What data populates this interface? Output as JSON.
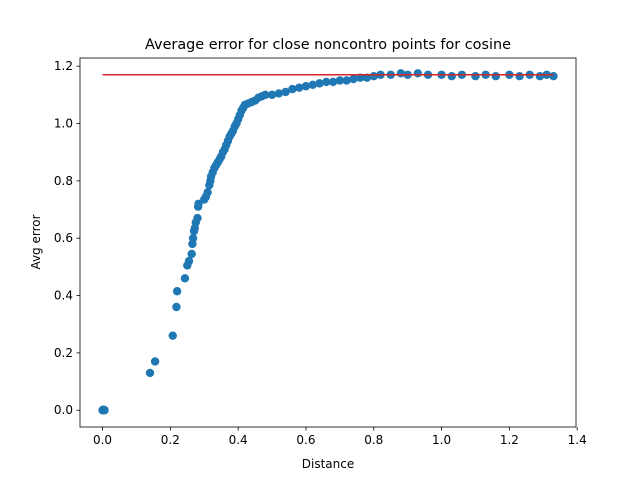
{
  "chart_data": {
    "type": "scatter",
    "title": "Average error for close noncontro points for cosine",
    "xlabel": "Distance",
    "ylabel": "Avg error",
    "xlim": [
      -0.0665,
      1.3965
    ],
    "ylim": [
      -0.0585,
      1.2285
    ],
    "xticks": [
      0.0,
      0.2,
      0.4,
      0.6,
      0.8,
      1.0,
      1.2,
      1.4
    ],
    "xtick_labels": [
      "0.0",
      "0.2",
      "0.4",
      "0.6",
      "0.8",
      "1.0",
      "1.2",
      "1.4"
    ],
    "yticks": [
      0.0,
      0.2,
      0.4,
      0.6,
      0.8,
      1.0,
      1.2
    ],
    "ytick_labels": [
      "0.0",
      "0.2",
      "0.4",
      "0.6",
      "0.8",
      "1.0",
      "1.2"
    ],
    "grid": false,
    "point_color": "#1f77b4",
    "line_color": "#d62728",
    "reference_line": {
      "y": 1.17,
      "x_start": 0.0,
      "x_end": 1.33
    },
    "series": [
      {
        "points": [
          [
            0.0,
            0.0
          ],
          [
            0.003,
            0.0
          ],
          [
            0.006,
            0.0
          ],
          [
            0.002,
            0.002
          ],
          [
            0.005,
            0.001
          ],
          [
            0.14,
            0.13
          ],
          [
            0.155,
            0.17
          ],
          [
            0.207,
            0.26
          ],
          [
            0.218,
            0.36
          ],
          [
            0.22,
            0.415
          ],
          [
            0.243,
            0.46
          ],
          [
            0.25,
            0.505
          ],
          [
            0.255,
            0.52
          ],
          [
            0.263,
            0.545
          ],
          [
            0.265,
            0.58
          ],
          [
            0.267,
            0.6
          ],
          [
            0.27,
            0.625
          ],
          [
            0.272,
            0.635
          ],
          [
            0.275,
            0.655
          ],
          [
            0.28,
            0.67
          ],
          [
            0.282,
            0.71
          ],
          [
            0.283,
            0.72
          ],
          [
            0.3,
            0.735
          ],
          [
            0.305,
            0.745
          ],
          [
            0.31,
            0.76
          ],
          [
            0.315,
            0.785
          ],
          [
            0.318,
            0.8
          ],
          [
            0.32,
            0.815
          ],
          [
            0.325,
            0.83
          ],
          [
            0.33,
            0.845
          ],
          [
            0.335,
            0.855
          ],
          [
            0.34,
            0.865
          ],
          [
            0.345,
            0.875
          ],
          [
            0.35,
            0.885
          ],
          [
            0.355,
            0.9
          ],
          [
            0.36,
            0.91
          ],
          [
            0.365,
            0.925
          ],
          [
            0.37,
            0.94
          ],
          [
            0.375,
            0.955
          ],
          [
            0.38,
            0.965
          ],
          [
            0.385,
            0.975
          ],
          [
            0.39,
            0.99
          ],
          [
            0.395,
            1.0
          ],
          [
            0.4,
            1.015
          ],
          [
            0.405,
            1.03
          ],
          [
            0.41,
            1.045
          ],
          [
            0.415,
            1.055
          ],
          [
            0.42,
            1.065
          ],
          [
            0.43,
            1.07
          ],
          [
            0.44,
            1.075
          ],
          [
            0.45,
            1.08
          ],
          [
            0.46,
            1.09
          ],
          [
            0.47,
            1.095
          ],
          [
            0.48,
            1.1
          ],
          [
            0.5,
            1.1
          ],
          [
            0.52,
            1.105
          ],
          [
            0.54,
            1.11
          ],
          [
            0.56,
            1.12
          ],
          [
            0.58,
            1.125
          ],
          [
            0.6,
            1.13
          ],
          [
            0.62,
            1.135
          ],
          [
            0.64,
            1.14
          ],
          [
            0.66,
            1.145
          ],
          [
            0.68,
            1.145
          ],
          [
            0.7,
            1.15
          ],
          [
            0.72,
            1.15
          ],
          [
            0.74,
            1.155
          ],
          [
            0.76,
            1.16
          ],
          [
            0.78,
            1.16
          ],
          [
            0.8,
            1.165
          ],
          [
            0.82,
            1.17
          ],
          [
            0.85,
            1.17
          ],
          [
            0.88,
            1.175
          ],
          [
            0.9,
            1.17
          ],
          [
            0.93,
            1.175
          ],
          [
            0.96,
            1.17
          ],
          [
            1.0,
            1.17
          ],
          [
            1.03,
            1.165
          ],
          [
            1.06,
            1.17
          ],
          [
            1.1,
            1.165
          ],
          [
            1.13,
            1.17
          ],
          [
            1.16,
            1.165
          ],
          [
            1.2,
            1.17
          ],
          [
            1.23,
            1.165
          ],
          [
            1.26,
            1.17
          ],
          [
            1.29,
            1.165
          ],
          [
            1.31,
            1.17
          ],
          [
            1.33,
            1.165
          ]
        ]
      }
    ]
  }
}
